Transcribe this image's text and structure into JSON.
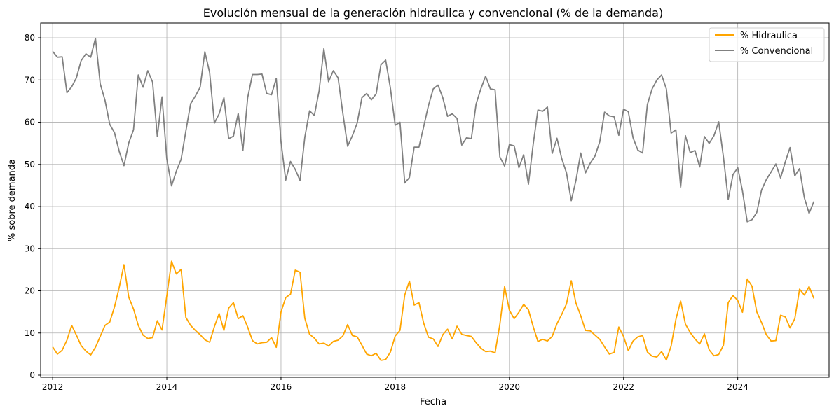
{
  "chart_data": {
    "type": "line",
    "title": "Evolución mensual de la generación hidraulica y convencional (% de la demanda)",
    "xlabel": "Fecha",
    "ylabel": "% sobre demanda",
    "x_start": "2012-01",
    "x_tick_labels": [
      "2012",
      "2014",
      "2016",
      "2018",
      "2020",
      "2022",
      "2024"
    ],
    "y_ticks": [
      0,
      10,
      20,
      30,
      40,
      50,
      60,
      70,
      80
    ],
    "ylim": [
      -0.5,
      83.5
    ],
    "grid": true,
    "legend_position": "top-right",
    "series": [
      {
        "name": "% Hidraulica",
        "color": "#ffa500",
        "values": [
          6.7,
          5.0,
          5.9,
          8.3,
          11.8,
          9.5,
          7.0,
          5.7,
          4.8,
          6.6,
          9.2,
          11.8,
          12.6,
          16.2,
          20.8,
          26.2,
          18.5,
          15.7,
          11.8,
          9.5,
          8.7,
          8.9,
          12.9,
          10.7,
          18.8,
          27.0,
          24.0,
          25.1,
          13.7,
          11.8,
          10.6,
          9.6,
          8.4,
          7.8,
          11.5,
          14.6,
          10.6,
          15.9,
          17.2,
          13.4,
          14.1,
          11.4,
          8.2,
          7.4,
          7.7,
          7.8,
          8.9,
          6.6,
          15.0,
          18.4,
          19.2,
          24.9,
          24.4,
          13.5,
          9.7,
          8.8,
          7.4,
          7.6,
          6.9,
          8.0,
          8.3,
          9.3,
          12.0,
          9.4,
          9.1,
          7.1,
          5.0,
          4.6,
          5.2,
          3.5,
          3.7,
          5.5,
          9.3,
          10.6,
          19.0,
          22.3,
          16.6,
          17.2,
          12.3,
          9.0,
          8.6,
          6.8,
          9.6,
          10.9,
          8.6,
          11.6,
          9.7,
          9.4,
          9.2,
          7.7,
          6.4,
          5.6,
          5.7,
          5.3,
          12.0,
          21.0,
          15.4,
          13.4,
          14.9,
          16.8,
          15.5,
          11.5,
          8.0,
          8.5,
          8.1,
          9.2,
          12.2,
          14.4,
          16.9,
          22.4,
          17.1,
          14.1,
          10.6,
          10.5,
          9.5,
          8.5,
          6.7,
          5.0,
          5.4,
          11.4,
          9.2,
          5.8,
          8.1,
          9.1,
          9.4,
          5.5,
          4.5,
          4.3,
          5.6,
          3.6,
          6.9,
          13.2,
          17.6,
          12.1,
          10.1,
          8.6,
          7.4,
          9.8,
          6.0,
          4.6,
          4.9,
          7.1,
          17.2,
          18.9,
          17.7,
          14.9,
          22.8,
          21.1,
          15.0,
          12.5,
          9.6,
          8.1,
          8.2,
          14.2,
          13.8,
          11.2,
          13.4,
          20.4,
          19.0,
          21.0,
          18.2
        ]
      },
      {
        "name": "% Convencional",
        "color": "#808080",
        "values": [
          76.8,
          75.4,
          75.5,
          67.0,
          68.4,
          70.5,
          74.6,
          76.2,
          75.4,
          79.9,
          69.1,
          65.2,
          59.5,
          57.5,
          53.1,
          49.7,
          55.1,
          58.2,
          71.2,
          68.3,
          72.2,
          69.5,
          56.6,
          66.0,
          51.3,
          44.9,
          48.4,
          51.2,
          57.9,
          64.4,
          66.2,
          68.3,
          76.7,
          71.8,
          59.8,
          62.0,
          65.8,
          56.1,
          56.7,
          62.1,
          53.3,
          65.8,
          71.3,
          71.3,
          71.4,
          66.8,
          66.5,
          70.4,
          55.3,
          46.3,
          50.7,
          48.8,
          46.2,
          56.4,
          62.7,
          61.6,
          67.4,
          77.4,
          69.6,
          72.2,
          70.5,
          62.1,
          54.3,
          56.8,
          59.8,
          65.8,
          66.8,
          65.3,
          66.7,
          73.6,
          74.7,
          68.0,
          59.3,
          60.0,
          45.6,
          46.9,
          54.1,
          54.1,
          59.0,
          64.0,
          67.9,
          68.8,
          65.8,
          61.4,
          62.0,
          60.9,
          54.6,
          56.3,
          56.1,
          64.3,
          67.9,
          70.9,
          67.9,
          67.7,
          51.8,
          49.6,
          54.7,
          54.4,
          49.2,
          52.3,
          45.3,
          54.8,
          62.9,
          62.6,
          63.6,
          52.6,
          56.2,
          51.4,
          48.0,
          41.4,
          46.2,
          52.7,
          48.0,
          50.3,
          52.0,
          55.4,
          62.4,
          61.5,
          61.3,
          56.9,
          63.1,
          62.5,
          56.3,
          53.4,
          52.7,
          64.2,
          67.9,
          70.0,
          71.2,
          67.9,
          57.4,
          58.2,
          44.6,
          56.8,
          52.8,
          53.3,
          49.4,
          56.6,
          55.0,
          56.8,
          60.1,
          51.7,
          41.7,
          47.6,
          49.2,
          43.7,
          36.4,
          36.9,
          38.6,
          43.9,
          46.4,
          48.2,
          50.1,
          46.8,
          50.6,
          54.0,
          47.3,
          49.0,
          42.1,
          38.4,
          41.2
        ]
      }
    ]
  }
}
